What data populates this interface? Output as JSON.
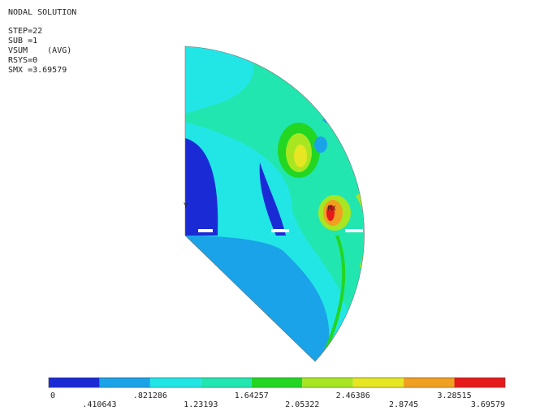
{
  "header": {
    "title": "NODAL SOLUTION",
    "lines": [
      "STEP=22",
      "SUB =1",
      "VSUM    (AVG)",
      "RSYS=0",
      "SMX =3.69579"
    ]
  },
  "plot": {
    "axis_label": "Y",
    "max_label": "MX"
  },
  "legend": {
    "labels": [
      "0",
      ".410643",
      ".821286",
      "1.23193",
      "1.64257",
      "2.05322",
      "2.46386",
      "2.8745",
      "3.28515",
      "3.69579"
    ],
    "colors": [
      "#1a2bd6",
      "#1aa3e8",
      "#22e6e6",
      "#22e6b0",
      "#22d622",
      "#a8e622",
      "#e6e622",
      "#f0a020",
      "#e61a1a"
    ]
  }
}
